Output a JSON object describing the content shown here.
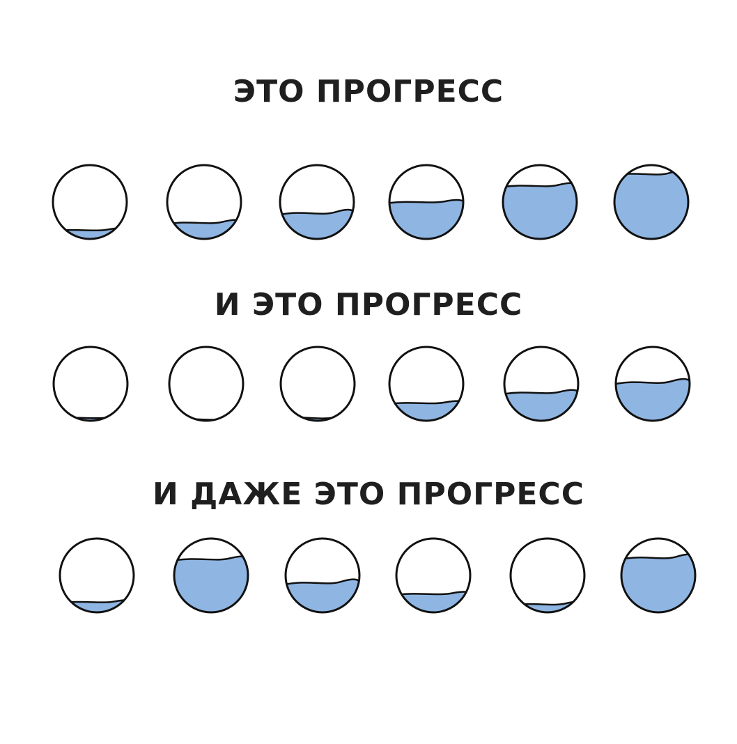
{
  "rows": [
    {
      "heading": "ЭТО ПРОГРЕСС",
      "fill_levels": [
        0.12,
        0.22,
        0.35,
        0.5,
        0.72,
        0.88
      ]
    },
    {
      "heading": "И ЭТО ПРОГРЕСС",
      "fill_levels": [
        0.04,
        0.02,
        0.04,
        0.24,
        0.38,
        0.52
      ]
    },
    {
      "heading": "И ДАЖЕ ЭТО ПРОГРЕСС",
      "fill_levels": [
        0.14,
        0.72,
        0.4,
        0.25,
        0.11,
        0.74
      ]
    }
  ],
  "colors": {
    "water": "#8fb6e3",
    "outline": "#111111",
    "text": "#1f1f1f"
  }
}
